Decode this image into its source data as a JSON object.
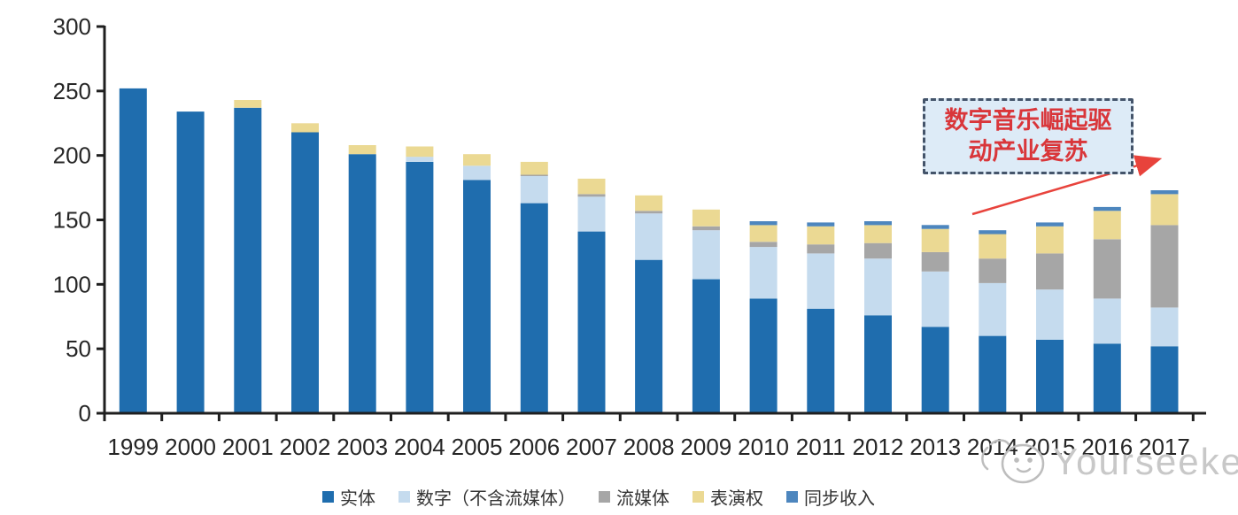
{
  "chart_data": {
    "type": "bar",
    "stacked": true,
    "title": "",
    "categories": [
      "1999",
      "2000",
      "2001",
      "2002",
      "2003",
      "2004",
      "2005",
      "2006",
      "2007",
      "2008",
      "2009",
      "2010",
      "2011",
      "2012",
      "2013",
      "2014",
      "2015",
      "2016",
      "2017"
    ],
    "series": [
      {
        "key": "physical",
        "name": "实体",
        "color": "#1F6DAE",
        "values": [
          252,
          234,
          237,
          218,
          201,
          195,
          181,
          163,
          141,
          119,
          104,
          89,
          81,
          76,
          67,
          60,
          57,
          54,
          52
        ]
      },
      {
        "key": "digital",
        "name": "数字（不含流媒体）",
        "color": "#C5DBEE",
        "values": [
          0,
          0,
          0,
          0,
          0,
          4,
          11,
          21,
          27,
          36,
          38,
          40,
          43,
          44,
          43,
          41,
          39,
          35,
          30
        ]
      },
      {
        "key": "streaming",
        "name": "流媒体",
        "color": "#A6A6A6",
        "values": [
          0,
          0,
          0,
          0,
          0,
          0,
          0,
          1,
          2,
          2,
          3,
          4,
          7,
          12,
          15,
          19,
          28,
          46,
          64
        ]
      },
      {
        "key": "performance",
        "name": "表演权",
        "color": "#EBD993",
        "values": [
          0,
          0,
          6,
          7,
          7,
          8,
          9,
          10,
          12,
          12,
          13,
          13,
          14,
          14,
          18,
          19,
          21,
          22,
          24
        ]
      },
      {
        "key": "sync",
        "name": "同步收入",
        "color": "#4D86BE",
        "values": [
          0,
          0,
          0,
          0,
          0,
          0,
          0,
          0,
          0,
          0,
          0,
          3,
          3,
          3,
          3,
          3,
          3,
          3,
          3
        ]
      }
    ],
    "y_axis": {
      "min": 0,
      "max": 300,
      "ticks": [
        0,
        50,
        100,
        150,
        200,
        250,
        300
      ]
    },
    "xlabel": "",
    "ylabel": "",
    "grid": false,
    "legend_position": "bottom"
  },
  "style": {
    "axis_color": "#1f1f1f",
    "tick_label_color": "#262626",
    "background": "#ffffff"
  },
  "annotation": {
    "line1": "数字音乐崛起驱",
    "line2": "动产业复苏",
    "text_color": "#D9363A",
    "border_color": "#44546A",
    "fill_color": "#DDEBF7",
    "arrow_color": "#E8433C"
  },
  "watermark": {
    "text": "Yourseeker",
    "color": "#C8C8C8"
  }
}
